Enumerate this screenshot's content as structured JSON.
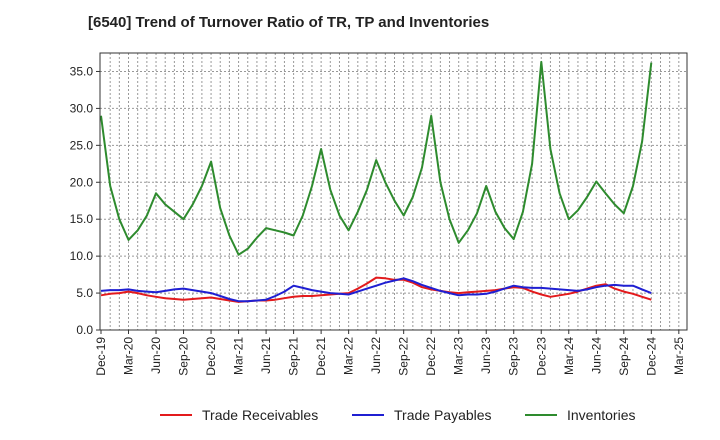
{
  "chart_data": {
    "type": "line",
    "title": "[6540]  Trend of Turnover Ratio of TR, TP and Inventories",
    "xlabel": "",
    "ylabel": "",
    "ylim": [
      0,
      37.5
    ],
    "yticks": [
      "0.0",
      "5.0",
      "10.0",
      "15.0",
      "20.0",
      "25.0",
      "30.0",
      "35.0"
    ],
    "x": [
      "Dec-19",
      "Jan-20",
      "Feb-20",
      "Mar-20",
      "Apr-20",
      "May-20",
      "Jun-20",
      "Jul-20",
      "Aug-20",
      "Sep-20",
      "Oct-20",
      "Nov-20",
      "Dec-20",
      "Jan-21",
      "Feb-21",
      "Mar-21",
      "Apr-21",
      "May-21",
      "Jun-21",
      "Jul-21",
      "Aug-21",
      "Sep-21",
      "Oct-21",
      "Nov-21",
      "Dec-21",
      "Jan-22",
      "Feb-22",
      "Mar-22",
      "Apr-22",
      "May-22",
      "Jun-22",
      "Jul-22",
      "Aug-22",
      "Sep-22",
      "Oct-22",
      "Nov-22",
      "Dec-22",
      "Jan-23",
      "Feb-23",
      "Mar-23",
      "Apr-23",
      "May-23",
      "Jun-23",
      "Jul-23",
      "Aug-23",
      "Sep-23",
      "Oct-23",
      "Nov-23",
      "Dec-23",
      "Jan-24",
      "Feb-24",
      "Mar-24",
      "Apr-24",
      "May-24",
      "Jun-24",
      "Jul-24",
      "Aug-24",
      "Sep-24",
      "Oct-24",
      "Nov-24",
      "Dec-24"
    ],
    "xtick_labels": [
      "Dec-19",
      "Mar-20",
      "Jun-20",
      "Sep-20",
      "Dec-20",
      "Mar-21",
      "Jun-21",
      "Sep-21",
      "Dec-21",
      "Mar-22",
      "Jun-22",
      "Sep-22",
      "Dec-22",
      "Mar-23",
      "Jun-23",
      "Sep-23",
      "Dec-23",
      "Mar-24",
      "Jun-24",
      "Sep-24",
      "Dec-24",
      "Mar-25"
    ],
    "grid": true,
    "legend_position": "bottom",
    "series": [
      {
        "name": "Trade Receivables",
        "color": "#e31a1c",
        "values": [
          4.7,
          4.9,
          5.0,
          5.2,
          5.0,
          4.7,
          4.5,
          4.3,
          4.2,
          4.1,
          4.2,
          4.3,
          4.4,
          4.2,
          4.0,
          3.8,
          3.9,
          4.0,
          4.0,
          4.1,
          4.3,
          4.5,
          4.6,
          4.6,
          4.7,
          4.8,
          4.9,
          5.0,
          5.6,
          6.3,
          7.1,
          7.0,
          6.8,
          6.8,
          6.4,
          5.8,
          5.5,
          5.3,
          5.1,
          5.0,
          5.1,
          5.2,
          5.3,
          5.4,
          5.6,
          5.8,
          5.7,
          5.2,
          4.8,
          4.5,
          4.7,
          4.9,
          5.2,
          5.6,
          6.0,
          6.2,
          5.6,
          5.2,
          4.9,
          4.5,
          4.1
        ]
      },
      {
        "name": "Trade Payables",
        "color": "#1f1fd2",
        "values": [
          5.3,
          5.4,
          5.4,
          5.5,
          5.3,
          5.2,
          5.1,
          5.3,
          5.5,
          5.6,
          5.4,
          5.2,
          5.0,
          4.6,
          4.2,
          3.9,
          3.9,
          4.0,
          4.1,
          4.6,
          5.2,
          6.0,
          5.7,
          5.4,
          5.2,
          5.0,
          4.9,
          4.8,
          5.2,
          5.6,
          6.0,
          6.4,
          6.7,
          7.0,
          6.6,
          6.1,
          5.7,
          5.3,
          5.0,
          4.7,
          4.8,
          4.8,
          4.9,
          5.2,
          5.6,
          6.0,
          5.8,
          5.7,
          5.7,
          5.6,
          5.5,
          5.4,
          5.3,
          5.5,
          5.8,
          6.0,
          6.1,
          6.0,
          6.0,
          5.5,
          5.0
        ]
      },
      {
        "name": "Inventories",
        "color": "#2e8b2e",
        "values": [
          29.0,
          19.5,
          15.0,
          12.2,
          13.5,
          15.5,
          18.5,
          17.0,
          16.0,
          15.0,
          17.0,
          19.5,
          22.8,
          16.5,
          12.8,
          10.2,
          11.0,
          12.5,
          13.8,
          13.5,
          13.2,
          12.8,
          15.5,
          19.5,
          24.5,
          19.0,
          15.5,
          13.5,
          16.0,
          19.0,
          23.0,
          20.0,
          17.5,
          15.5,
          18.0,
          22.0,
          29.0,
          20.0,
          15.0,
          11.8,
          13.5,
          15.8,
          19.5,
          16.0,
          13.8,
          12.3,
          16.0,
          22.5,
          36.3,
          24.5,
          18.5,
          15.0,
          16.2,
          18.0,
          20.1,
          18.5,
          17.0,
          15.8,
          19.5,
          25.5,
          36.2
        ]
      }
    ]
  }
}
